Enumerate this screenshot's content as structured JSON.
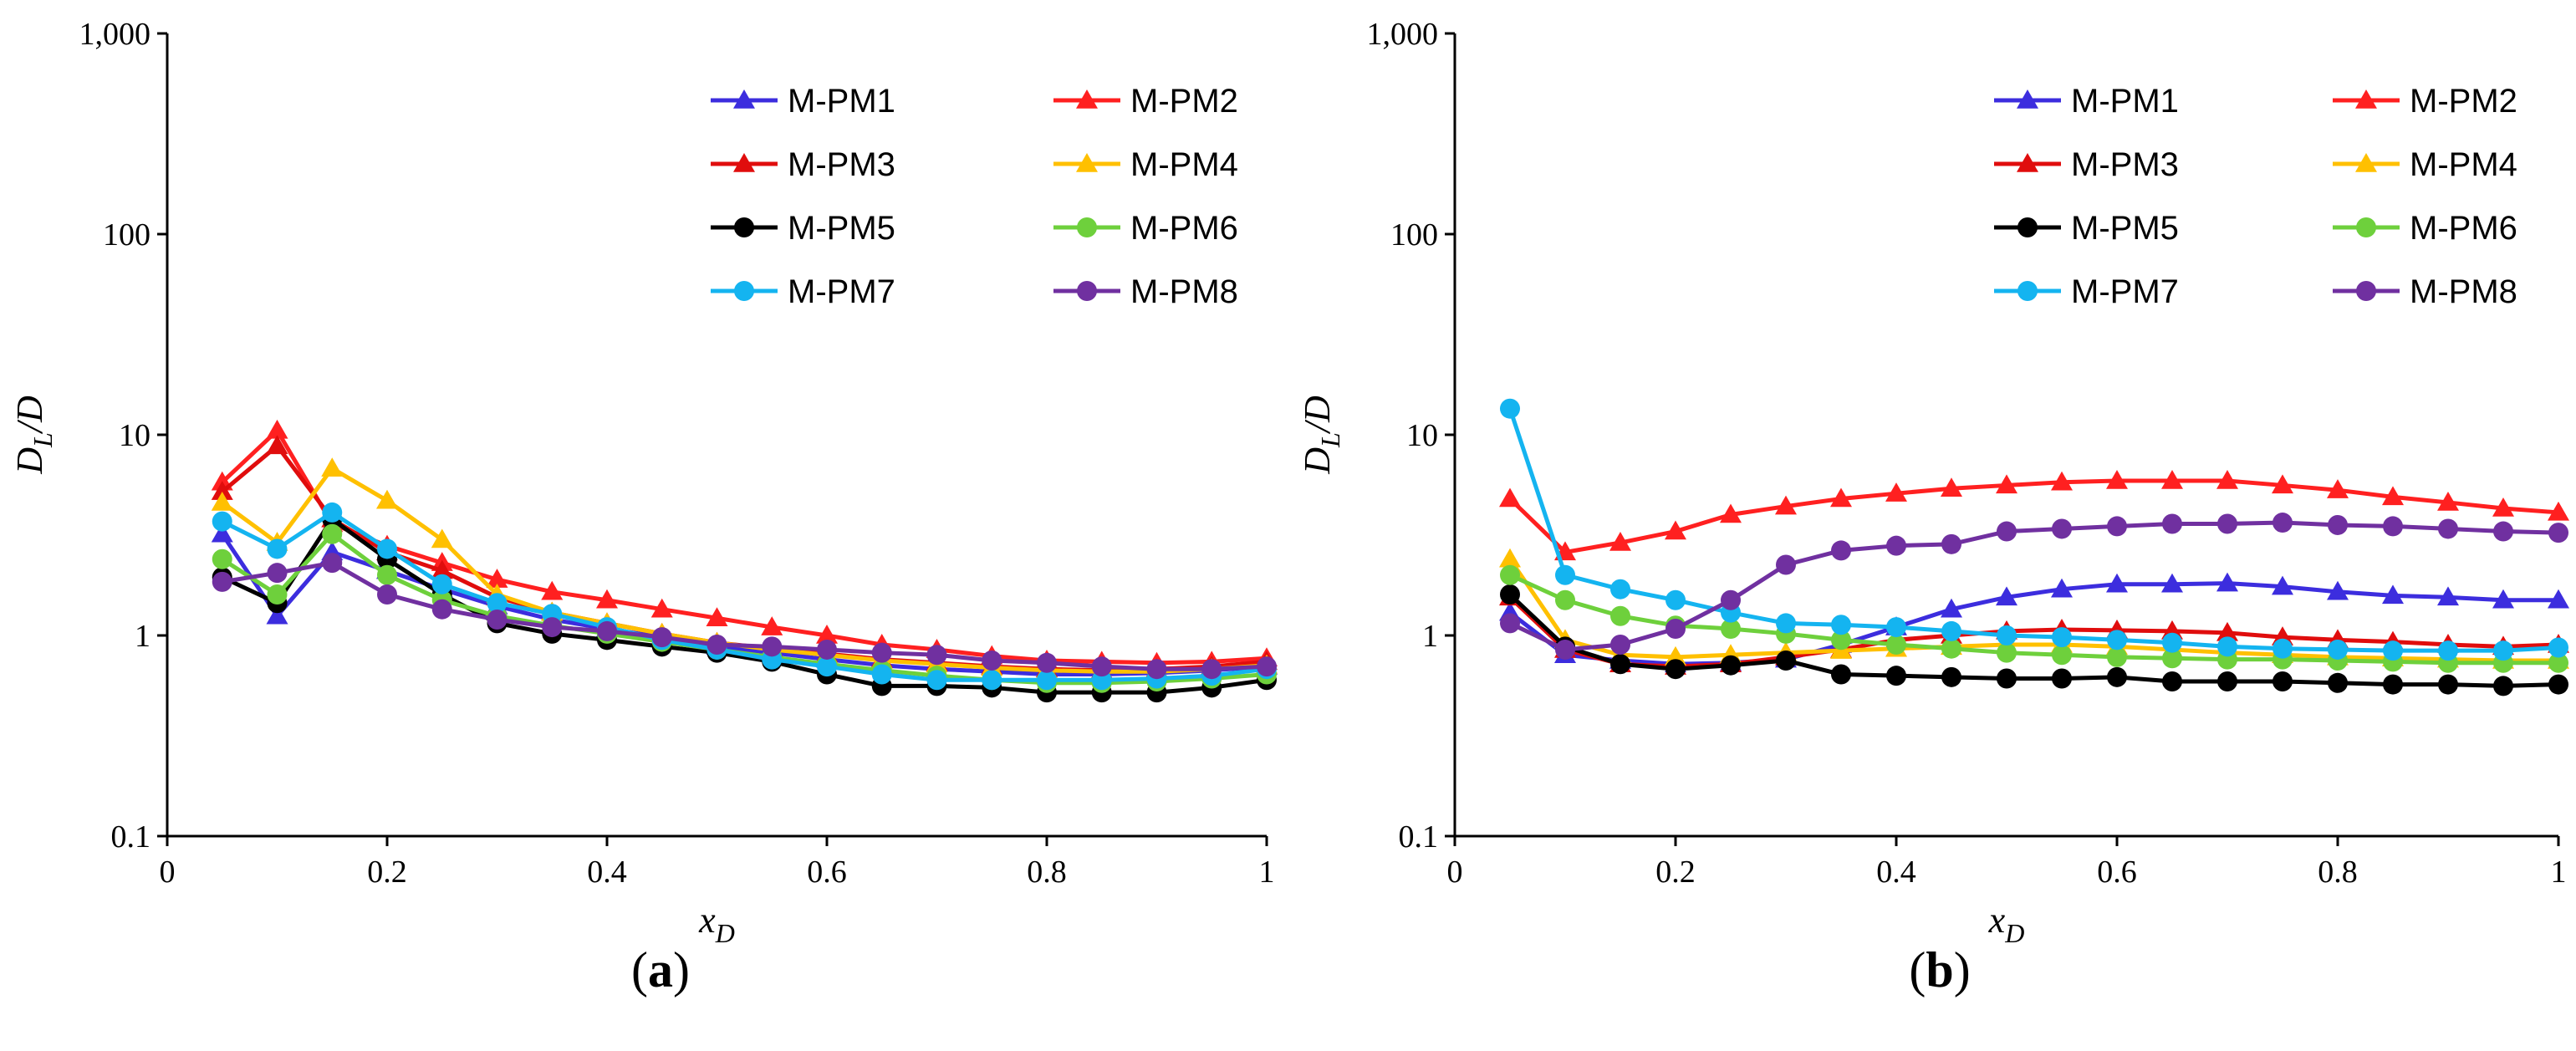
{
  "chart_data": [
    {
      "type": "line",
      "panel_label": "a",
      "xlabel": "x",
      "xlabel_sub": "D",
      "ylabel": "D",
      "ylabel_sub": "L",
      "ylabel_suffix": "/D",
      "yscale": "log",
      "xlim": [
        0,
        1
      ],
      "ylim": [
        0.1,
        1000
      ],
      "xticks": [
        "0",
        "0.2",
        "0.4",
        "0.6",
        "0.8",
        "1"
      ],
      "yticks": [
        "0.1",
        "1",
        "10",
        "100",
        "1,000"
      ],
      "legend_position": "top-right",
      "x": [
        0.05,
        0.1,
        0.15,
        0.2,
        0.25,
        0.3,
        0.35,
        0.4,
        0.45,
        0.5,
        0.55,
        0.6,
        0.65,
        0.7,
        0.75,
        0.8,
        0.85,
        0.9,
        0.95,
        1.0
      ],
      "series": [
        {
          "name": "M-PM1",
          "color": "#3c2dde",
          "marker": "triangle",
          "values": [
            3.2,
            1.25,
            2.6,
            2.1,
            1.7,
            1.4,
            1.2,
            1.08,
            0.98,
            0.88,
            0.82,
            0.76,
            0.71,
            0.68,
            0.66,
            0.64,
            0.64,
            0.65,
            0.67,
            0.7
          ]
        },
        {
          "name": "M-PM2",
          "color": "#ff2020",
          "marker": "triangle",
          "values": [
            5.8,
            10.5,
            3.6,
            2.8,
            2.3,
            1.9,
            1.65,
            1.5,
            1.35,
            1.22,
            1.1,
            1.0,
            0.9,
            0.85,
            0.79,
            0.75,
            0.74,
            0.73,
            0.74,
            0.77
          ]
        },
        {
          "name": "M-PM3",
          "color": "#e00d0d",
          "marker": "triangle",
          "values": [
            5.2,
            8.8,
            3.8,
            2.6,
            2.1,
            1.55,
            1.3,
            1.15,
            1.02,
            0.92,
            0.86,
            0.81,
            0.76,
            0.73,
            0.7,
            0.68,
            0.67,
            0.68,
            0.7,
            0.74
          ]
        },
        {
          "name": "M-PM4",
          "color": "#ffc000",
          "marker": "triangle",
          "values": [
            4.6,
            2.9,
            6.8,
            4.7,
            3.0,
            1.6,
            1.3,
            1.15,
            1.02,
            0.92,
            0.85,
            0.8,
            0.75,
            0.72,
            0.69,
            0.67,
            0.66,
            0.66,
            0.68,
            0.71
          ]
        },
        {
          "name": "M-PM5",
          "color": "#000000",
          "marker": "circle",
          "values": [
            1.95,
            1.45,
            3.8,
            2.4,
            1.6,
            1.15,
            1.02,
            0.95,
            0.88,
            0.82,
            0.74,
            0.64,
            0.56,
            0.56,
            0.55,
            0.52,
            0.52,
            0.52,
            0.55,
            0.6
          ]
        },
        {
          "name": "M-PM6",
          "color": "#6ed03c",
          "marker": "circle",
          "values": [
            2.4,
            1.6,
            3.2,
            2.0,
            1.5,
            1.25,
            1.12,
            1.02,
            0.93,
            0.85,
            0.78,
            0.72,
            0.67,
            0.63,
            0.6,
            0.58,
            0.58,
            0.59,
            0.61,
            0.64
          ]
        },
        {
          "name": "M-PM7",
          "color": "#14b4f0",
          "marker": "circle",
          "values": [
            3.7,
            2.7,
            4.1,
            2.7,
            1.8,
            1.45,
            1.28,
            1.1,
            0.95,
            0.85,
            0.76,
            0.7,
            0.64,
            0.6,
            0.6,
            0.6,
            0.6,
            0.61,
            0.63,
            0.68
          ]
        },
        {
          "name": "M-PM8",
          "color": "#7030a0",
          "marker": "circle",
          "values": [
            1.85,
            2.05,
            2.3,
            1.6,
            1.35,
            1.2,
            1.1,
            1.05,
            0.98,
            0.9,
            0.88,
            0.85,
            0.82,
            0.8,
            0.75,
            0.73,
            0.7,
            0.68,
            0.68,
            0.7
          ]
        }
      ]
    },
    {
      "type": "line",
      "panel_label": "b",
      "xlabel": "x",
      "xlabel_sub": "D",
      "ylabel": "D",
      "ylabel_sub": "L",
      "ylabel_suffix": "/D",
      "yscale": "log",
      "xlim": [
        0,
        1
      ],
      "ylim": [
        0.1,
        1000
      ],
      "xticks": [
        "0",
        "0.2",
        "0.4",
        "0.6",
        "0.8",
        "1"
      ],
      "yticks": [
        "0.1",
        "1",
        "10",
        "100",
        "1,000"
      ],
      "legend_position": "top-right",
      "x": [
        0.05,
        0.1,
        0.15,
        0.2,
        0.25,
        0.3,
        0.35,
        0.4,
        0.45,
        0.5,
        0.55,
        0.6,
        0.65,
        0.7,
        0.75,
        0.8,
        0.85,
        0.9,
        0.95,
        1.0
      ],
      "series": [
        {
          "name": "M-PM1",
          "color": "#3c2dde",
          "marker": "triangle",
          "values": [
            1.3,
            0.8,
            0.75,
            0.72,
            0.73,
            0.76,
            0.9,
            1.1,
            1.35,
            1.55,
            1.7,
            1.8,
            1.8,
            1.82,
            1.75,
            1.65,
            1.58,
            1.55,
            1.5,
            1.5
          ]
        },
        {
          "name": "M-PM2",
          "color": "#ff2020",
          "marker": "triangle",
          "values": [
            4.8,
            2.6,
            2.9,
            3.3,
            4.0,
            4.4,
            4.8,
            5.1,
            5.4,
            5.6,
            5.8,
            5.9,
            5.9,
            5.9,
            5.6,
            5.3,
            4.9,
            4.6,
            4.3,
            4.1
          ]
        },
        {
          "name": "M-PM3",
          "color": "#e00d0d",
          "marker": "triangle",
          "values": [
            1.55,
            0.85,
            0.72,
            0.7,
            0.72,
            0.78,
            0.85,
            0.95,
            1.0,
            1.05,
            1.07,
            1.06,
            1.05,
            1.03,
            0.98,
            0.95,
            0.93,
            0.9,
            0.88,
            0.9
          ]
        },
        {
          "name": "M-PM4",
          "color": "#ffc000",
          "marker": "triangle",
          "values": [
            2.4,
            0.95,
            0.8,
            0.78,
            0.8,
            0.82,
            0.84,
            0.86,
            0.88,
            0.9,
            0.9,
            0.88,
            0.85,
            0.82,
            0.8,
            0.78,
            0.77,
            0.76,
            0.75,
            0.75
          ]
        },
        {
          "name": "M-PM5",
          "color": "#000000",
          "marker": "circle",
          "values": [
            1.6,
            0.88,
            0.72,
            0.68,
            0.71,
            0.75,
            0.64,
            0.63,
            0.62,
            0.61,
            0.61,
            0.62,
            0.59,
            0.59,
            0.59,
            0.58,
            0.57,
            0.57,
            0.56,
            0.57
          ]
        },
        {
          "name": "M-PM6",
          "color": "#6ed03c",
          "marker": "circle",
          "values": [
            2.0,
            1.5,
            1.25,
            1.12,
            1.08,
            1.02,
            0.95,
            0.9,
            0.86,
            0.82,
            0.8,
            0.78,
            0.77,
            0.76,
            0.76,
            0.75,
            0.74,
            0.73,
            0.73,
            0.73
          ]
        },
        {
          "name": "M-PM7",
          "color": "#14b4f0",
          "marker": "circle",
          "values": [
            13.5,
            2.0,
            1.7,
            1.5,
            1.3,
            1.15,
            1.13,
            1.1,
            1.05,
            1.0,
            0.98,
            0.95,
            0.92,
            0.88,
            0.86,
            0.85,
            0.84,
            0.84,
            0.84,
            0.87
          ]
        },
        {
          "name": "M-PM8",
          "color": "#7030a0",
          "marker": "circle",
          "values": [
            1.15,
            0.85,
            0.9,
            1.08,
            1.5,
            2.25,
            2.65,
            2.8,
            2.85,
            3.3,
            3.4,
            3.5,
            3.6,
            3.6,
            3.65,
            3.55,
            3.5,
            3.4,
            3.3,
            3.25
          ]
        }
      ]
    }
  ]
}
